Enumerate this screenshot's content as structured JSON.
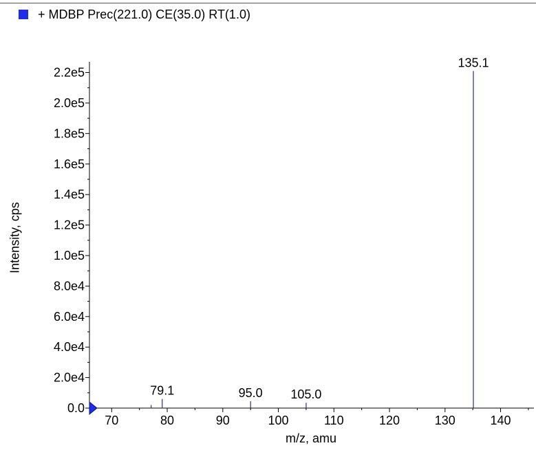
{
  "legend": {
    "label": "+ MDBP Prec(221.0) CE(35.0) RT(1.0)",
    "color": "#1f2ee6"
  },
  "chart_data": {
    "type": "bar",
    "title": "",
    "xlabel": "m/z, amu",
    "ylabel": "Intensity, cps",
    "xlim": [
      66,
      146
    ],
    "ylim": [
      0,
      227000
    ],
    "x_ticks": [
      70,
      80,
      90,
      100,
      110,
      120,
      130,
      140
    ],
    "y_ticks": [
      {
        "value": 0,
        "label": "0.0"
      },
      {
        "value": 20000,
        "label": "2.0e4"
      },
      {
        "value": 40000,
        "label": "4.0e4"
      },
      {
        "value": 60000,
        "label": "6.0e4"
      },
      {
        "value": 80000,
        "label": "8.0e4"
      },
      {
        "value": 100000,
        "label": "1.0e5"
      },
      {
        "value": 120000,
        "label": "1.2e5"
      },
      {
        "value": 140000,
        "label": "1.4e5"
      },
      {
        "value": 160000,
        "label": "1.6e5"
      },
      {
        "value": 180000,
        "label": "1.8e5"
      },
      {
        "value": 200000,
        "label": "2.0e5"
      },
      {
        "value": 220000,
        "label": "2.2e5"
      }
    ],
    "series_color": "#2a2a9a",
    "peaks": [
      {
        "mz": 77.1,
        "intensity": 2000,
        "label": ""
      },
      {
        "mz": 79.1,
        "intensity": 6000,
        "label": "79.1"
      },
      {
        "mz": 95.0,
        "intensity": 4500,
        "label": "95.0"
      },
      {
        "mz": 105.0,
        "intensity": 3500,
        "label": "105.0"
      },
      {
        "mz": 135.1,
        "intensity": 221000,
        "label": "135.1"
      }
    ],
    "marker_value": 0
  }
}
